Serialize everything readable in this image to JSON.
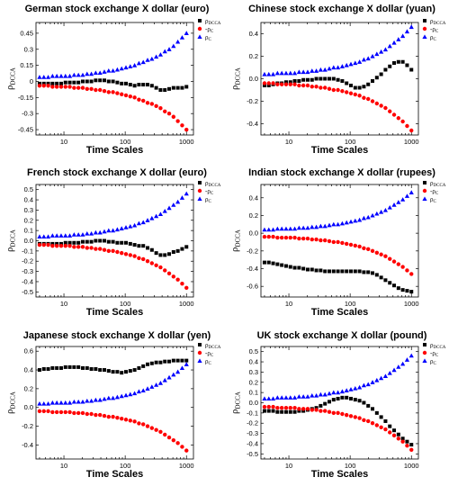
{
  "figure": {
    "xlabel": "Time Scales",
    "ylabel_base": "ρ",
    "ylabel_sub": "DCCA",
    "legend": [
      {
        "base": "ρ",
        "sub": "DCCA",
        "marker": "square",
        "color": "#000000"
      },
      {
        "base": "-ρ",
        "sub": "C",
        "marker": "circle",
        "color": "#ff0000"
      },
      {
        "base": "ρ",
        "sub": "C",
        "marker": "triangle",
        "color": "#0000ff"
      }
    ]
  },
  "chart_data": [
    {
      "type": "scatter",
      "title": "German stock exchange X dollar (euro)",
      "xlabel": "Time Scales",
      "ylabel": "ρDCCA",
      "xscale": "log",
      "xlim": [
        3.5,
        1300
      ],
      "xticks": [
        10,
        100,
        1000
      ],
      "ylim": [
        -0.5,
        0.55
      ],
      "yticks": [
        -0.45,
        -0.3,
        -0.15,
        0,
        0.15,
        0.3,
        0.45
      ],
      "legend_position": "top-right",
      "series": [
        {
          "name": "ρDCCA",
          "color": "#000000",
          "marker": "square",
          "y": [
            -0.02,
            -0.02,
            -0.02,
            -0.02,
            -0.02,
            -0.02,
            -0.01,
            -0.01,
            -0.01,
            -0.01,
            0.0,
            0.0,
            0.0,
            0.01,
            0.01,
            0.01,
            0.0,
            0.0,
            -0.01,
            -0.02,
            -0.02,
            -0.03,
            -0.04,
            -0.03,
            -0.03,
            -0.03,
            -0.04,
            -0.06,
            -0.08,
            -0.08,
            -0.07,
            -0.06,
            -0.06,
            -0.06,
            -0.05
          ]
        },
        {
          "name": "-ρC",
          "color": "#ff0000",
          "marker": "circle",
          "y": [
            -0.04,
            -0.04,
            -0.04,
            -0.05,
            -0.05,
            -0.05,
            -0.05,
            -0.05,
            -0.06,
            -0.06,
            -0.06,
            -0.07,
            -0.07,
            -0.08,
            -0.08,
            -0.09,
            -0.1,
            -0.1,
            -0.11,
            -0.12,
            -0.13,
            -0.14,
            -0.15,
            -0.17,
            -0.18,
            -0.2,
            -0.21,
            -0.23,
            -0.25,
            -0.28,
            -0.3,
            -0.33,
            -0.37,
            -0.41,
            -0.45
          ]
        },
        {
          "name": "ρC",
          "color": "#0000ff",
          "marker": "triangle",
          "y": [
            0.04,
            0.04,
            0.04,
            0.05,
            0.05,
            0.05,
            0.05,
            0.05,
            0.06,
            0.06,
            0.06,
            0.07,
            0.07,
            0.08,
            0.08,
            0.09,
            0.1,
            0.1,
            0.11,
            0.12,
            0.13,
            0.14,
            0.15,
            0.17,
            0.18,
            0.2,
            0.21,
            0.23,
            0.25,
            0.28,
            0.3,
            0.33,
            0.37,
            0.41,
            0.45
          ]
        }
      ]
    },
    {
      "type": "scatter",
      "title": "Chinese stock exchange X dollar (yuan)",
      "xlabel": "Time Scales",
      "ylabel": "ρDCCA",
      "xscale": "log",
      "xlim": [
        3.5,
        1300
      ],
      "xticks": [
        10,
        100,
        1000
      ],
      "ylim": [
        -0.5,
        0.5
      ],
      "yticks": [
        -0.4,
        -0.2,
        0.0,
        0.2,
        0.4
      ],
      "legend_position": "top-right",
      "series": [
        {
          "name": "ρDCCA",
          "color": "#000000",
          "marker": "square",
          "y": [
            -0.06,
            -0.06,
            -0.05,
            -0.04,
            -0.04,
            -0.03,
            -0.03,
            -0.02,
            -0.02,
            -0.01,
            -0.01,
            -0.01,
            0.0,
            0.0,
            0.0,
            0.0,
            0.0,
            -0.01,
            -0.02,
            -0.04,
            -0.06,
            -0.08,
            -0.08,
            -0.07,
            -0.05,
            -0.02,
            0.01,
            0.04,
            0.08,
            0.11,
            0.14,
            0.15,
            0.15,
            0.12,
            0.08
          ]
        },
        {
          "name": "-ρC",
          "color": "#ff0000",
          "marker": "circle",
          "y": [
            -0.04,
            -0.04,
            -0.04,
            -0.05,
            -0.05,
            -0.05,
            -0.05,
            -0.05,
            -0.06,
            -0.06,
            -0.06,
            -0.07,
            -0.07,
            -0.08,
            -0.08,
            -0.09,
            -0.1,
            -0.1,
            -0.11,
            -0.12,
            -0.13,
            -0.14,
            -0.15,
            -0.17,
            -0.18,
            -0.2,
            -0.22,
            -0.24,
            -0.26,
            -0.29,
            -0.32,
            -0.35,
            -0.38,
            -0.42,
            -0.46
          ]
        },
        {
          "name": "ρC",
          "color": "#0000ff",
          "marker": "triangle",
          "y": [
            0.04,
            0.04,
            0.04,
            0.05,
            0.05,
            0.05,
            0.05,
            0.05,
            0.06,
            0.06,
            0.06,
            0.07,
            0.07,
            0.08,
            0.08,
            0.09,
            0.1,
            0.1,
            0.11,
            0.12,
            0.13,
            0.14,
            0.15,
            0.17,
            0.18,
            0.2,
            0.22,
            0.24,
            0.26,
            0.29,
            0.32,
            0.35,
            0.38,
            0.42,
            0.46
          ]
        }
      ]
    },
    {
      "type": "scatter",
      "title": "French stock exchange X dollar (euro)",
      "xlabel": "Time Scales",
      "ylabel": "ρDCCA",
      "xscale": "log",
      "xlim": [
        3.5,
        1300
      ],
      "xticks": [
        10,
        100,
        1000
      ],
      "ylim": [
        -0.55,
        0.55
      ],
      "yticks": [
        -0.5,
        -0.4,
        -0.3,
        -0.2,
        -0.1,
        0.0,
        0.1,
        0.2,
        0.3,
        0.4,
        0.5
      ],
      "legend_position": "top-right",
      "series": [
        {
          "name": "ρDCCA",
          "color": "#000000",
          "marker": "square",
          "y": [
            -0.03,
            -0.03,
            -0.03,
            -0.03,
            -0.03,
            -0.03,
            -0.02,
            -0.02,
            -0.02,
            -0.02,
            -0.01,
            -0.01,
            -0.01,
            0.0,
            0.0,
            0.0,
            -0.01,
            -0.01,
            -0.02,
            -0.02,
            -0.02,
            -0.03,
            -0.04,
            -0.05,
            -0.05,
            -0.07,
            -0.09,
            -0.12,
            -0.14,
            -0.14,
            -0.13,
            -0.11,
            -0.1,
            -0.08,
            -0.06
          ]
        },
        {
          "name": "-ρC",
          "color": "#ff0000",
          "marker": "circle",
          "y": [
            -0.04,
            -0.04,
            -0.04,
            -0.05,
            -0.05,
            -0.05,
            -0.05,
            -0.05,
            -0.06,
            -0.06,
            -0.06,
            -0.07,
            -0.07,
            -0.08,
            -0.08,
            -0.09,
            -0.1,
            -0.1,
            -0.11,
            -0.12,
            -0.13,
            -0.14,
            -0.15,
            -0.17,
            -0.18,
            -0.2,
            -0.22,
            -0.24,
            -0.26,
            -0.29,
            -0.32,
            -0.35,
            -0.38,
            -0.42,
            -0.46
          ]
        },
        {
          "name": "ρC",
          "color": "#0000ff",
          "marker": "triangle",
          "y": [
            0.04,
            0.04,
            0.04,
            0.05,
            0.05,
            0.05,
            0.05,
            0.05,
            0.06,
            0.06,
            0.06,
            0.07,
            0.07,
            0.08,
            0.08,
            0.09,
            0.1,
            0.1,
            0.11,
            0.12,
            0.13,
            0.14,
            0.15,
            0.17,
            0.18,
            0.2,
            0.22,
            0.24,
            0.26,
            0.29,
            0.32,
            0.35,
            0.38,
            0.42,
            0.46
          ]
        }
      ]
    },
    {
      "type": "scatter",
      "title": "Indian stock exchange X dollar (rupees)",
      "xlabel": "Time Scales",
      "ylabel": "ρDCCA",
      "xscale": "log",
      "xlim": [
        3.5,
        1300
      ],
      "xticks": [
        10,
        100,
        1000
      ],
      "ylim": [
        -0.72,
        0.55
      ],
      "yticks": [
        -0.6,
        -0.4,
        -0.2,
        0.0,
        0.2,
        0.4
      ],
      "legend_position": "top-right",
      "series": [
        {
          "name": "ρDCCA",
          "color": "#000000",
          "marker": "square",
          "y": [
            -0.33,
            -0.33,
            -0.34,
            -0.35,
            -0.36,
            -0.37,
            -0.38,
            -0.39,
            -0.39,
            -0.4,
            -0.41,
            -0.41,
            -0.42,
            -0.42,
            -0.43,
            -0.43,
            -0.43,
            -0.43,
            -0.43,
            -0.43,
            -0.43,
            -0.43,
            -0.43,
            -0.44,
            -0.44,
            -0.45,
            -0.47,
            -0.5,
            -0.53,
            -0.56,
            -0.59,
            -0.62,
            -0.64,
            -0.65,
            -0.66
          ]
        },
        {
          "name": "-ρC",
          "color": "#ff0000",
          "marker": "circle",
          "y": [
            -0.04,
            -0.04,
            -0.04,
            -0.05,
            -0.05,
            -0.05,
            -0.05,
            -0.05,
            -0.06,
            -0.06,
            -0.06,
            -0.07,
            -0.07,
            -0.08,
            -0.08,
            -0.09,
            -0.1,
            -0.1,
            -0.11,
            -0.12,
            -0.13,
            -0.14,
            -0.15,
            -0.17,
            -0.18,
            -0.2,
            -0.22,
            -0.24,
            -0.26,
            -0.29,
            -0.32,
            -0.35,
            -0.38,
            -0.42,
            -0.46
          ]
        },
        {
          "name": "ρC",
          "color": "#0000ff",
          "marker": "triangle",
          "y": [
            0.04,
            0.04,
            0.04,
            0.05,
            0.05,
            0.05,
            0.05,
            0.05,
            0.06,
            0.06,
            0.06,
            0.07,
            0.07,
            0.08,
            0.08,
            0.09,
            0.1,
            0.1,
            0.11,
            0.12,
            0.13,
            0.14,
            0.15,
            0.17,
            0.18,
            0.2,
            0.22,
            0.24,
            0.26,
            0.29,
            0.32,
            0.35,
            0.38,
            0.42,
            0.46
          ]
        }
      ]
    },
    {
      "type": "scatter",
      "title": "Japanese stock exchange X dollar (yen)",
      "xlabel": "Time Scales",
      "ylabel": "ρDCCA",
      "xscale": "log",
      "xlim": [
        3.5,
        1300
      ],
      "xticks": [
        10,
        100,
        1000
      ],
      "ylim": [
        -0.55,
        0.65
      ],
      "yticks": [
        -0.4,
        -0.2,
        0.0,
        0.2,
        0.4,
        0.6
      ],
      "legend_position": "top-right",
      "series": [
        {
          "name": "ρDCCA",
          "color": "#000000",
          "marker": "square",
          "y": [
            0.4,
            0.41,
            0.41,
            0.42,
            0.42,
            0.42,
            0.43,
            0.43,
            0.43,
            0.43,
            0.42,
            0.42,
            0.41,
            0.41,
            0.4,
            0.4,
            0.39,
            0.38,
            0.38,
            0.37,
            0.38,
            0.39,
            0.4,
            0.42,
            0.44,
            0.46,
            0.47,
            0.48,
            0.48,
            0.49,
            0.49,
            0.5,
            0.5,
            0.5,
            0.5
          ]
        },
        {
          "name": "-ρC",
          "color": "#ff0000",
          "marker": "circle",
          "y": [
            -0.04,
            -0.04,
            -0.04,
            -0.05,
            -0.05,
            -0.05,
            -0.05,
            -0.05,
            -0.06,
            -0.06,
            -0.06,
            -0.07,
            -0.07,
            -0.08,
            -0.08,
            -0.09,
            -0.1,
            -0.1,
            -0.11,
            -0.12,
            -0.13,
            -0.14,
            -0.15,
            -0.17,
            -0.18,
            -0.2,
            -0.22,
            -0.24,
            -0.26,
            -0.29,
            -0.32,
            -0.35,
            -0.38,
            -0.42,
            -0.46
          ]
        },
        {
          "name": "ρC",
          "color": "#0000ff",
          "marker": "triangle",
          "y": [
            0.04,
            0.04,
            0.04,
            0.05,
            0.05,
            0.05,
            0.05,
            0.05,
            0.06,
            0.06,
            0.06,
            0.07,
            0.07,
            0.08,
            0.08,
            0.09,
            0.1,
            0.1,
            0.11,
            0.12,
            0.13,
            0.14,
            0.15,
            0.17,
            0.18,
            0.2,
            0.22,
            0.24,
            0.26,
            0.29,
            0.32,
            0.35,
            0.38,
            0.42,
            0.46
          ]
        }
      ]
    },
    {
      "type": "scatter",
      "title": "UK stock exchange X dollar (pound)",
      "xlabel": "Time Scales",
      "ylabel": "ρDCCA",
      "xscale": "log",
      "xlim": [
        3.5,
        1300
      ],
      "xticks": [
        10,
        100,
        1000
      ],
      "ylim": [
        -0.55,
        0.55
      ],
      "yticks": [
        -0.5,
        -0.4,
        -0.3,
        -0.2,
        -0.1,
        0.0,
        0.1,
        0.2,
        0.3,
        0.4,
        0.5
      ],
      "legend_position": "top-right",
      "series": [
        {
          "name": "ρDCCA",
          "color": "#000000",
          "marker": "square",
          "y": [
            -0.08,
            -0.08,
            -0.08,
            -0.09,
            -0.09,
            -0.09,
            -0.09,
            -0.09,
            -0.08,
            -0.08,
            -0.07,
            -0.06,
            -0.05,
            -0.03,
            -0.01,
            0.01,
            0.03,
            0.04,
            0.05,
            0.05,
            0.04,
            0.03,
            0.02,
            0.0,
            -0.03,
            -0.06,
            -0.1,
            -0.14,
            -0.18,
            -0.23,
            -0.27,
            -0.31,
            -0.35,
            -0.38,
            -0.41
          ]
        },
        {
          "name": "-ρC",
          "color": "#ff0000",
          "marker": "circle",
          "y": [
            -0.04,
            -0.04,
            -0.04,
            -0.05,
            -0.05,
            -0.05,
            -0.05,
            -0.05,
            -0.06,
            -0.06,
            -0.06,
            -0.07,
            -0.07,
            -0.08,
            -0.08,
            -0.09,
            -0.1,
            -0.1,
            -0.11,
            -0.12,
            -0.13,
            -0.14,
            -0.15,
            -0.17,
            -0.18,
            -0.2,
            -0.22,
            -0.24,
            -0.26,
            -0.29,
            -0.32,
            -0.35,
            -0.38,
            -0.42,
            -0.46
          ]
        },
        {
          "name": "ρC",
          "color": "#0000ff",
          "marker": "triangle",
          "y": [
            0.04,
            0.04,
            0.04,
            0.05,
            0.05,
            0.05,
            0.05,
            0.05,
            0.06,
            0.06,
            0.06,
            0.07,
            0.07,
            0.08,
            0.08,
            0.09,
            0.1,
            0.1,
            0.11,
            0.12,
            0.13,
            0.14,
            0.15,
            0.17,
            0.18,
            0.2,
            0.22,
            0.24,
            0.26,
            0.29,
            0.32,
            0.35,
            0.38,
            0.42,
            0.46
          ]
        }
      ]
    }
  ]
}
